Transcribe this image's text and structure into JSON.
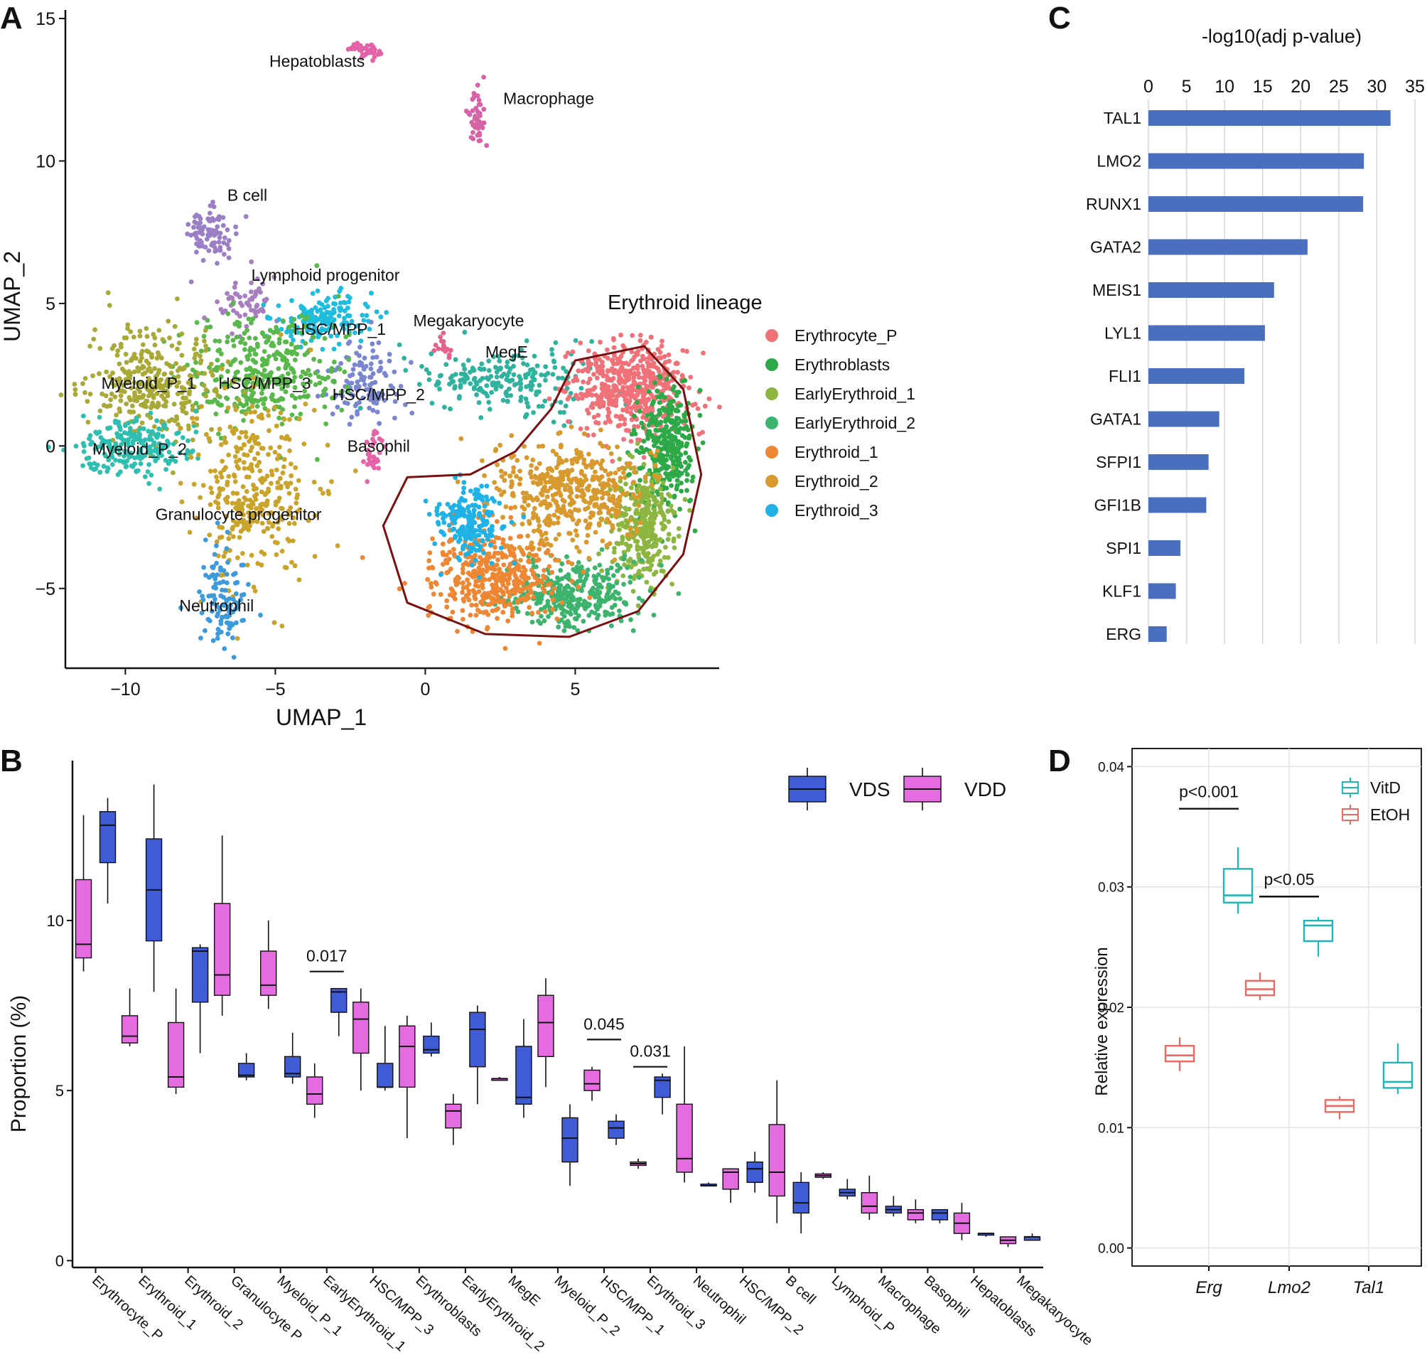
{
  "colors": {
    "vds": "#3F5BD6",
    "vdd": "#E46BE0",
    "bar": "#4A6FBF",
    "vitd": "#1FB6B8",
    "etoh": "#EB6964",
    "lineage": "#7A1010"
  },
  "chart_data": [
    {
      "panel": "A",
      "type": "scatter",
      "xlabel": "UMAP_1",
      "ylabel": "UMAP_2",
      "xlim": [
        -12,
        9.8
      ],
      "ylim": [
        -7.8,
        15.3
      ],
      "xticks": [
        -10,
        -5,
        0,
        5
      ],
      "xtick_labels": [
        "−10",
        "−5",
        "0",
        "5"
      ],
      "yticks": [
        -5,
        0,
        5,
        10,
        15
      ],
      "ytick_labels": [
        "−5",
        "0",
        "5",
        "10",
        "15"
      ],
      "legend_title": "Erythroid lineage",
      "legend": [
        {
          "name": "Erythrocyte_P",
          "color": "#F07178"
        },
        {
          "name": "Erythroblasts",
          "color": "#2DAA47"
        },
        {
          "name": "EarlyErythroid_1",
          "color": "#8DB640"
        },
        {
          "name": "EarlyErythroid_2",
          "color": "#3DB46E"
        },
        {
          "name": "Erythroid_1",
          "color": "#EE8734"
        },
        {
          "name": "Erythroid_2",
          "color": "#D89A2E"
        },
        {
          "name": "Erythroid_3",
          "color": "#1EB2E6"
        }
      ],
      "clusters": [
        {
          "label": "Hepatoblasts",
          "color": "#E462A8",
          "cx": -2.0,
          "cy": 13.9,
          "sx": 0.25,
          "sy": 0.15,
          "n": 40,
          "lx": -5.2,
          "ly": 13.3
        },
        {
          "label": "Macrophage",
          "color": "#D663A8",
          "cx": 1.7,
          "cy": 11.5,
          "sx": 0.15,
          "sy": 0.6,
          "n": 45,
          "lx": 2.6,
          "ly": 12.0
        },
        {
          "label": "B cell",
          "color": "#9A7FC7",
          "cx": -7.2,
          "cy": 7.5,
          "sx": 0.4,
          "sy": 0.5,
          "n": 90,
          "lx": -6.6,
          "ly": 8.6
        },
        {
          "label": "Lymphoid progenitor",
          "color": "#A77FC0",
          "cx": -6.0,
          "cy": 5.0,
          "sx": 0.5,
          "sy": 0.5,
          "n": 60,
          "lx": -5.8,
          "ly": 5.8
        },
        {
          "label": "HSC/MPP_1",
          "color": "#1EBCDD",
          "cx": -3.5,
          "cy": 4.4,
          "sx": 0.8,
          "sy": 0.45,
          "n": 160,
          "lx": -4.4,
          "ly": 3.9
        },
        {
          "label": "HSC/MPP_2",
          "color": "#7A86D0",
          "cx": -2.0,
          "cy": 2.3,
          "sx": 0.7,
          "sy": 0.7,
          "n": 120,
          "lx": -3.1,
          "ly": 1.6
        },
        {
          "label": "HSC/MPP_3",
          "color": "#58B94A",
          "cx": -5.4,
          "cy": 2.6,
          "sx": 1.2,
          "sy": 1.0,
          "n": 360,
          "lx": -6.9,
          "ly": 2.0
        },
        {
          "label": "Myeloid_P_1",
          "color": "#A8A936",
          "cx": -9.0,
          "cy": 2.2,
          "sx": 1.0,
          "sy": 1.0,
          "n": 330,
          "lx": -10.8,
          "ly": 2.0
        },
        {
          "label": "Myeloid_P_2",
          "color": "#2EBFB0",
          "cx": -9.8,
          "cy": -0.1,
          "sx": 0.9,
          "sy": 0.55,
          "n": 210,
          "lx": -11.1,
          "ly": -0.3
        },
        {
          "label": "Basophil",
          "color": "#E563A6",
          "cx": -1.7,
          "cy": -0.2,
          "sx": 0.15,
          "sy": 0.45,
          "n": 35,
          "lx": -2.6,
          "ly": -0.2
        },
        {
          "label": "Granulocyte progenitor",
          "color": "#C9A32A",
          "cx": -5.8,
          "cy": -1.5,
          "sx": 1.0,
          "sy": 1.6,
          "n": 340,
          "lx": -9.0,
          "ly": -2.6
        },
        {
          "label": "Neutrophil",
          "color": "#3E9BDB",
          "cx": -6.7,
          "cy": -5.3,
          "sx": 0.4,
          "sy": 0.9,
          "n": 110,
          "lx": -8.2,
          "ly": -5.8
        },
        {
          "label": "Megakaryocyte",
          "color": "#E5628F",
          "cx": 0.6,
          "cy": 3.5,
          "sx": 0.12,
          "sy": 0.25,
          "n": 15,
          "lx": -0.4,
          "ly": 4.2
        },
        {
          "label": "MegE",
          "color": "#2FB39E",
          "cx": 2.8,
          "cy": 2.3,
          "sx": 1.5,
          "sy": 0.6,
          "n": 220,
          "lx": 2.0,
          "ly": 3.1
        },
        {
          "label": "",
          "color": "#F07178",
          "cx": 6.8,
          "cy": 2.0,
          "sx": 1.0,
          "sy": 0.8,
          "n": 520,
          "lx": 0,
          "ly": 0
        },
        {
          "label": "",
          "color": "#2DAA47",
          "cx": 8.0,
          "cy": 0.0,
          "sx": 0.45,
          "sy": 1.0,
          "n": 320,
          "lx": 0,
          "ly": 0
        },
        {
          "label": "",
          "color": "#8DB640",
          "cx": 7.2,
          "cy": -2.8,
          "sx": 0.55,
          "sy": 1.0,
          "n": 330,
          "lx": 0,
          "ly": 0
        },
        {
          "label": "",
          "color": "#3DB46E",
          "cx": 4.9,
          "cy": -5.2,
          "sx": 1.1,
          "sy": 0.6,
          "n": 340,
          "lx": 0,
          "ly": 0
        },
        {
          "label": "",
          "color": "#EE8734",
          "cx": 2.3,
          "cy": -4.6,
          "sx": 1.1,
          "sy": 0.8,
          "n": 430,
          "lx": 0,
          "ly": 0
        },
        {
          "label": "",
          "color": "#D89A2E",
          "cx": 4.8,
          "cy": -1.6,
          "sx": 1.2,
          "sy": 0.9,
          "n": 460,
          "lx": 0,
          "ly": 0
        },
        {
          "label": "",
          "color": "#1EB2E6",
          "cx": 1.5,
          "cy": -2.6,
          "sx": 0.55,
          "sy": 0.65,
          "n": 200,
          "lx": 0,
          "ly": 0
        }
      ],
      "outline": [
        [
          5.0,
          3.0
        ],
        [
          7.3,
          3.5
        ],
        [
          8.6,
          2.0
        ],
        [
          9.2,
          -1.0
        ],
        [
          8.6,
          -3.8
        ],
        [
          7.1,
          -5.8
        ],
        [
          4.8,
          -6.7
        ],
        [
          2.0,
          -6.6
        ],
        [
          -0.6,
          -5.5
        ],
        [
          -1.4,
          -2.8
        ],
        [
          -0.6,
          -1.1
        ],
        [
          1.5,
          -1.0
        ],
        [
          3.0,
          -0.2
        ],
        [
          4.2,
          1.3
        ],
        [
          5.0,
          3.0
        ]
      ]
    },
    {
      "panel": "B",
      "type": "box",
      "ylabel": "Proportion (%)",
      "ylim": [
        -0.2,
        14.7
      ],
      "yticks": [
        0,
        5,
        10
      ],
      "legend": [
        "VDS",
        "VDD"
      ],
      "categories": [
        "Erythrocyte_P",
        "Erythroid_1",
        "Erythroid_2",
        "Granulocyte P",
        "Myeloid_P_1",
        "EarlyErythroid_1",
        "HSC/MPP_3",
        "Erythroblasts",
        "EarlyErythroid_2",
        "MegE",
        "Myeloid_P_2",
        "HSC/MPP_1",
        "Erythroid_3",
        "Neutrophil",
        "HSC/MPP_2",
        "B cell",
        "Lymphoid_P",
        "Macrophage",
        "Basophil",
        "Hepatoblasts",
        "Megakaryocyte"
      ],
      "series": [
        {
          "name": "VDD",
          "boxes": [
            [
              8.5,
              8.9,
              9.3,
              11.2,
              13.1
            ],
            [
              6.3,
              6.4,
              6.6,
              7.2,
              8.0
            ],
            [
              4.9,
              5.1,
              5.4,
              7.0,
              8.0
            ],
            [
              7.2,
              7.8,
              8.4,
              10.5,
              12.5
            ],
            [
              7.4,
              7.8,
              8.1,
              9.1,
              10.0
            ],
            [
              4.2,
              4.6,
              4.9,
              5.4,
              5.8
            ],
            [
              5.0,
              6.1,
              7.1,
              7.6,
              8.0
            ],
            [
              3.6,
              5.1,
              6.3,
              6.9,
              7.2
            ],
            [
              3.4,
              3.9,
              4.4,
              4.6,
              4.9
            ],
            [
              5.3,
              5.3,
              5.35,
              5.35,
              5.4
            ],
            [
              5.1,
              6.0,
              7.0,
              7.8,
              8.3
            ],
            [
              4.7,
              5.0,
              5.2,
              5.6,
              5.7
            ],
            [
              2.7,
              2.8,
              2.85,
              2.9,
              3.0
            ],
            [
              2.3,
              2.6,
              3.0,
              4.6,
              6.3
            ],
            [
              1.7,
              2.1,
              2.6,
              2.7,
              2.7
            ],
            [
              1.1,
              1.9,
              2.6,
              4.0,
              5.3
            ],
            [
              2.4,
              2.45,
              2.5,
              2.55,
              2.6
            ],
            [
              1.2,
              1.4,
              1.6,
              2.0,
              2.5
            ],
            [
              1.1,
              1.2,
              1.4,
              1.5,
              1.8
            ],
            [
              0.6,
              0.8,
              1.1,
              1.4,
              1.7
            ],
            [
              0.4,
              0.5,
              0.6,
              0.7,
              0.7
            ]
          ]
        },
        {
          "name": "VDS",
          "boxes": [
            [
              10.5,
              11.7,
              12.8,
              13.2,
              13.6
            ],
            [
              7.9,
              9.4,
              10.9,
              12.4,
              14.0
            ],
            [
              6.1,
              7.6,
              9.1,
              9.2,
              9.3
            ],
            [
              5.3,
              5.4,
              5.45,
              5.8,
              6.1
            ],
            [
              5.2,
              5.4,
              5.5,
              6.0,
              6.7
            ],
            [
              6.6,
              7.3,
              7.9,
              8.0,
              8.0
            ],
            [
              5.0,
              5.1,
              5.1,
              5.8,
              6.9
            ],
            [
              6.0,
              6.1,
              6.2,
              6.6,
              7.0
            ],
            [
              4.6,
              5.7,
              6.8,
              7.3,
              7.5
            ],
            [
              4.2,
              4.6,
              4.8,
              6.3,
              7.1
            ],
            [
              2.2,
              2.9,
              3.6,
              4.2,
              4.6
            ],
            [
              3.4,
              3.6,
              3.9,
              4.1,
              4.3
            ],
            [
              4.3,
              4.8,
              5.3,
              5.4,
              5.5
            ],
            [
              2.2,
              2.2,
              2.2,
              2.25,
              2.3
            ],
            [
              2.0,
              2.3,
              2.7,
              2.9,
              3.2
            ],
            [
              0.8,
              1.4,
              1.7,
              2.3,
              2.6
            ],
            [
              1.8,
              1.9,
              2.0,
              2.1,
              2.4
            ],
            [
              1.3,
              1.4,
              1.5,
              1.6,
              1.9
            ],
            [
              1.1,
              1.2,
              1.4,
              1.5,
              1.5
            ],
            [
              0.7,
              0.75,
              0.8,
              0.8,
              0.8
            ],
            [
              0.6,
              0.6,
              0.7,
              0.7,
              0.8
            ]
          ]
        }
      ],
      "annotations": [
        {
          "category": "EarlyErythroid_1",
          "text": "0.017",
          "y": 8.5
        },
        {
          "category": "HSC/MPP_1",
          "text": "0.045",
          "y": 6.5
        },
        {
          "category": "Erythroid_3",
          "text": "0.031",
          "y": 5.7
        }
      ]
    },
    {
      "panel": "C",
      "type": "bar",
      "orientation": "horizontal",
      "xlabel": "-log10(adj p-value)",
      "xlim": [
        0,
        35
      ],
      "xticks": [
        0,
        5,
        10,
        15,
        20,
        25,
        30,
        35
      ],
      "categories": [
        "TAL1",
        "LMO2",
        "RUNX1",
        "GATA2",
        "MEIS1",
        "LYL1",
        "FLI1",
        "GATA1",
        "SFPI1",
        "GFI1B",
        "SPI1",
        "KLF1",
        "ERG"
      ],
      "values": [
        31.8,
        28.3,
        28.2,
        20.9,
        16.5,
        15.3,
        12.6,
        9.3,
        7.9,
        7.6,
        4.2,
        3.6,
        2.4
      ]
    },
    {
      "panel": "D",
      "type": "box",
      "ylabel": "Relative expression",
      "ylim": [
        -0.0015,
        0.0415
      ],
      "yticks": [
        0.0,
        0.01,
        0.02,
        0.03,
        0.04
      ],
      "ytick_labels": [
        "0.00",
        "0.01",
        "0.02",
        "0.03",
        "0.04"
      ],
      "categories": [
        "Erg",
        "Lmo2",
        "Tal1"
      ],
      "legend": [
        "VitD",
        "EtOH"
      ],
      "series": [
        {
          "name": "EtOH",
          "boxes": [
            [
              0.0147,
              0.0155,
              0.016,
              0.0168,
              0.0175
            ],
            [
              0.0206,
              0.021,
              0.0215,
              0.0222,
              0.0229
            ],
            [
              0.0107,
              0.0113,
              0.0118,
              0.0123,
              0.0126
            ]
          ]
        },
        {
          "name": "VitD",
          "boxes": [
            [
              0.0278,
              0.0287,
              0.0293,
              0.0315,
              0.0333
            ],
            [
              0.0242,
              0.0255,
              0.0268,
              0.0272,
              0.0275
            ],
            [
              0.0128,
              0.0133,
              0.0138,
              0.0154,
              0.017
            ]
          ]
        }
      ],
      "annotations": [
        {
          "category": "Erg",
          "text": "p<0.001",
          "y": 0.0365
        },
        {
          "category": "Lmo2",
          "text": "p<0.05",
          "y": 0.0292
        }
      ]
    }
  ]
}
